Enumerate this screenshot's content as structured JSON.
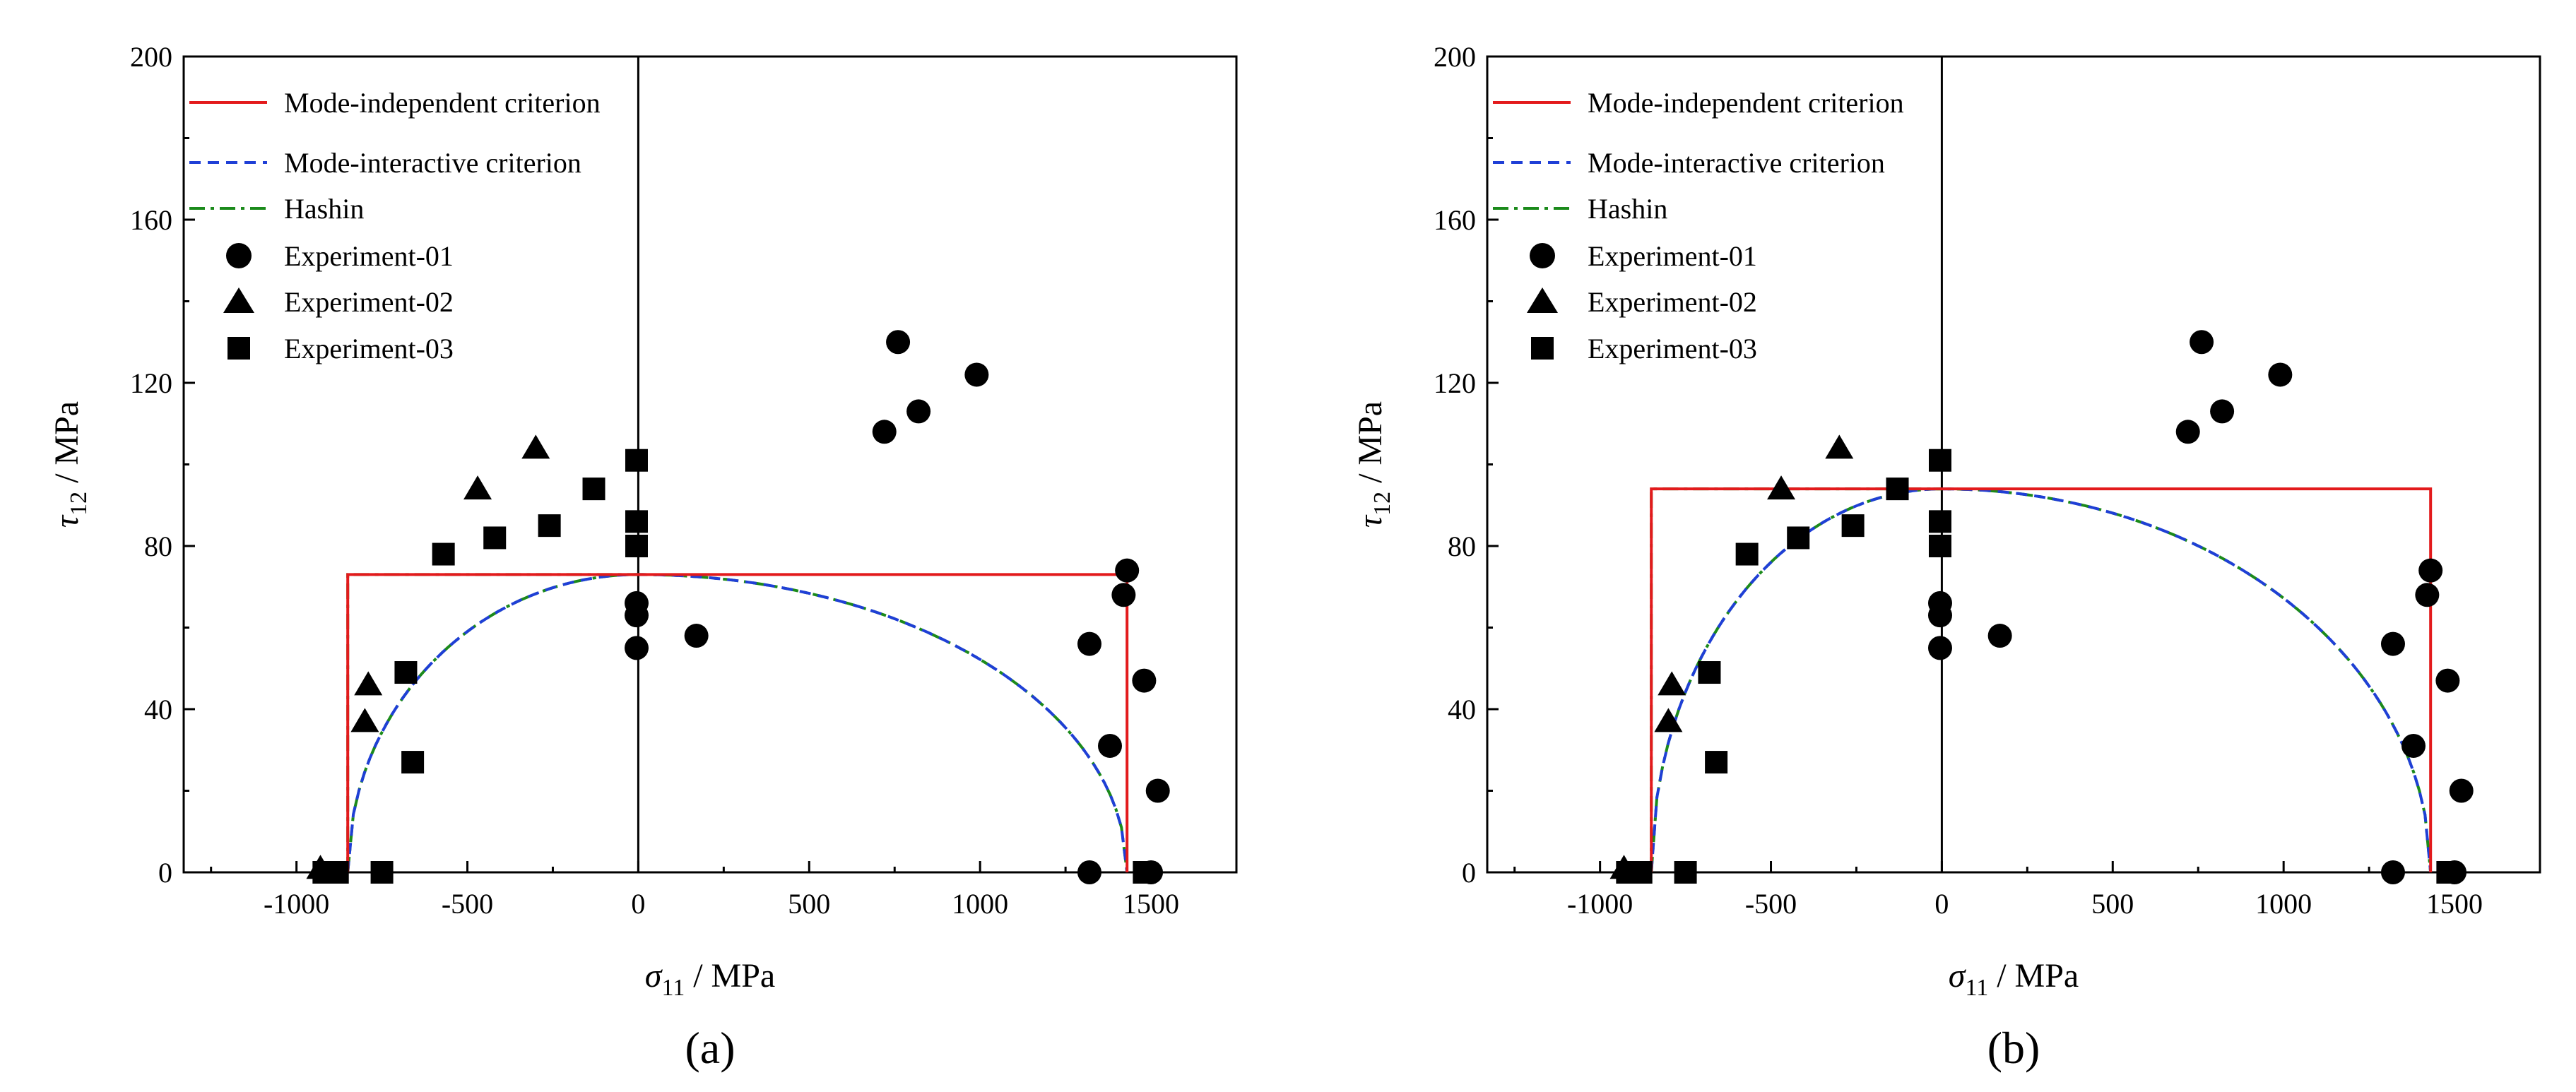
{
  "figure": {
    "panel_labels": [
      "(a)",
      "(b)"
    ]
  },
  "styles": {
    "mode_independent_color": "#e31a1c",
    "mode_interactive_color": "#1f3fd6",
    "hashin_color": "#1b8a1b",
    "marker_color": "#000000"
  },
  "chart_data": [
    {
      "id": "a",
      "type": "scatter",
      "panel_label": "(a)",
      "xlabel": {
        "symbol": "σ",
        "subscript": "11",
        "unit": " / MPa"
      },
      "ylabel": {
        "symbol": "τ",
        "subscript": "12",
        "unit": " / MPa"
      },
      "xlim": [
        -1330,
        1750
      ],
      "ylim": [
        0,
        200
      ],
      "xticks": [
        -1000,
        -500,
        0,
        500,
        1000,
        1500
      ],
      "xtick_labels": [
        "-1000",
        "-500",
        "0",
        "500",
        "1000",
        "1500"
      ],
      "yticks": [
        0,
        40,
        80,
        120,
        160,
        200
      ],
      "ytick_labels": [
        "0",
        "40",
        "80",
        "120",
        "160",
        "200"
      ],
      "legend": [
        "Mode-independent criterion",
        "Mode-interactive criterion",
        "Hashin",
        "Experiment-01",
        "Experiment-02",
        "Experiment-03"
      ],
      "criteria": {
        "Xc": -850,
        "Xt": 1430,
        "S": 73
      },
      "series": [
        {
          "name": "Experiment-01",
          "marker": "circle",
          "points": [
            [
              -5,
              55
            ],
            [
              -5,
              63
            ],
            [
              -5,
              66
            ],
            [
              170,
              58
            ],
            [
              720,
              108
            ],
            [
              760,
              130
            ],
            [
              820,
              113
            ],
            [
              990,
              122
            ],
            [
              1320,
              56
            ],
            [
              1320,
              0
            ],
            [
              1380,
              31
            ],
            [
              1420,
              68
            ],
            [
              1430,
              74
            ],
            [
              1480,
              47
            ],
            [
              1500,
              0
            ],
            [
              1520,
              20
            ]
          ]
        },
        {
          "name": "Experiment-02",
          "marker": "triangle",
          "points": [
            [
              -930,
              1
            ],
            [
              -800,
              37
            ],
            [
              -790,
              46
            ],
            [
              -470,
              94
            ],
            [
              -300,
              104
            ]
          ]
        },
        {
          "name": "Experiment-03",
          "marker": "square",
          "points": [
            [
              -920,
              0
            ],
            [
              -880,
              0
            ],
            [
              -750,
              0
            ],
            [
              -680,
              49
            ],
            [
              -660,
              27
            ],
            [
              -570,
              78
            ],
            [
              -420,
              82
            ],
            [
              -260,
              85
            ],
            [
              -130,
              94
            ],
            [
              -5,
              80
            ],
            [
              -5,
              86
            ],
            [
              -5,
              101
            ],
            [
              1480,
              0
            ]
          ]
        }
      ]
    },
    {
      "id": "b",
      "type": "scatter",
      "panel_label": "(b)",
      "xlabel": {
        "symbol": "σ",
        "subscript": "11",
        "unit": " / MPa"
      },
      "ylabel": {
        "symbol": "τ",
        "subscript": "12",
        "unit": " / MPa"
      },
      "xlim": [
        -1330,
        1750
      ],
      "ylim": [
        0,
        200
      ],
      "xticks": [
        -1000,
        -500,
        0,
        500,
        1000,
        1500
      ],
      "xtick_labels": [
        "-1000",
        "-500",
        "0",
        "500",
        "1000",
        "1500"
      ],
      "yticks": [
        0,
        40,
        80,
        120,
        160,
        200
      ],
      "ytick_labels": [
        "0",
        "40",
        "80",
        "120",
        "160",
        "200"
      ],
      "legend": [
        "Mode-independent criterion",
        "Mode-interactive criterion",
        "Hashin",
        "Experiment-01",
        "Experiment-02",
        "Experiment-03"
      ],
      "criteria": {
        "Xc": -850,
        "Xt": 1430,
        "S": 94
      },
      "series": [
        {
          "name": "Experiment-01",
          "marker": "circle",
          "points": [
            [
              -5,
              55
            ],
            [
              -5,
              63
            ],
            [
              -5,
              66
            ],
            [
              170,
              58
            ],
            [
              720,
              108
            ],
            [
              760,
              130
            ],
            [
              820,
              113
            ],
            [
              990,
              122
            ],
            [
              1320,
              56
            ],
            [
              1320,
              0
            ],
            [
              1380,
              31
            ],
            [
              1420,
              68
            ],
            [
              1430,
              74
            ],
            [
              1480,
              47
            ],
            [
              1500,
              0
            ],
            [
              1520,
              20
            ]
          ]
        },
        {
          "name": "Experiment-02",
          "marker": "triangle",
          "points": [
            [
              -930,
              1
            ],
            [
              -800,
              37
            ],
            [
              -790,
              46
            ],
            [
              -470,
              94
            ],
            [
              -300,
              104
            ]
          ]
        },
        {
          "name": "Experiment-03",
          "marker": "square",
          "points": [
            [
              -920,
              0
            ],
            [
              -880,
              0
            ],
            [
              -750,
              0
            ],
            [
              -680,
              49
            ],
            [
              -660,
              27
            ],
            [
              -570,
              78
            ],
            [
              -420,
              82
            ],
            [
              -260,
              85
            ],
            [
              -130,
              94
            ],
            [
              -5,
              80
            ],
            [
              -5,
              86
            ],
            [
              -5,
              101
            ],
            [
              1480,
              0
            ]
          ]
        }
      ]
    }
  ]
}
